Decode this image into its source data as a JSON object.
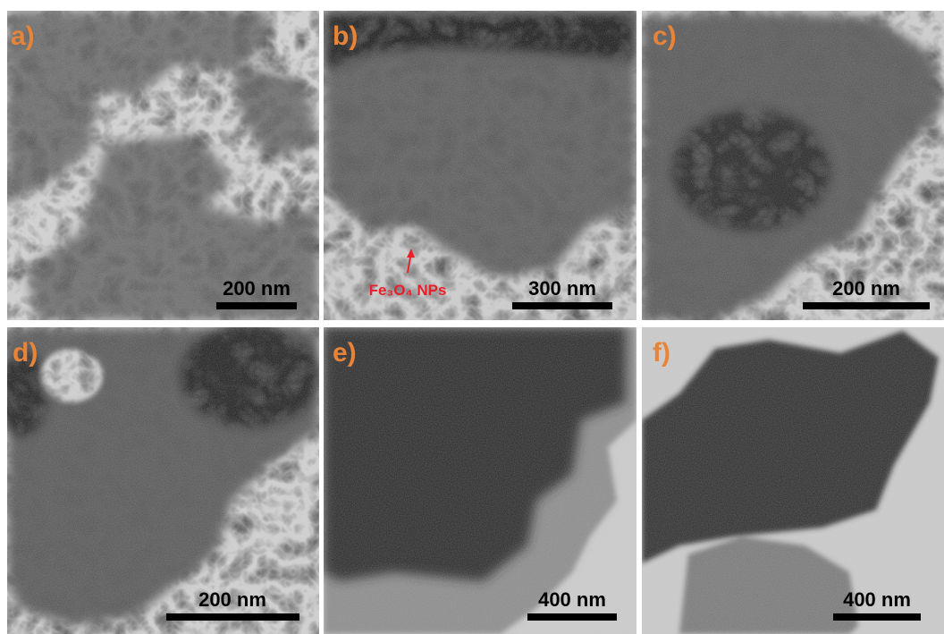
{
  "panels": [
    {
      "label": "a)",
      "scale_bar": "200 nm"
    },
    {
      "label": "b)",
      "scale_bar": "300 nm",
      "annotation": "Fe₃O₄ NPs"
    },
    {
      "label": "c)",
      "scale_bar": "200 nm"
    },
    {
      "label": "d)",
      "scale_bar": "200 nm"
    },
    {
      "label": "e)",
      "scale_bar": "400 nm"
    },
    {
      "label": "f)",
      "scale_bar": "400 nm"
    }
  ]
}
